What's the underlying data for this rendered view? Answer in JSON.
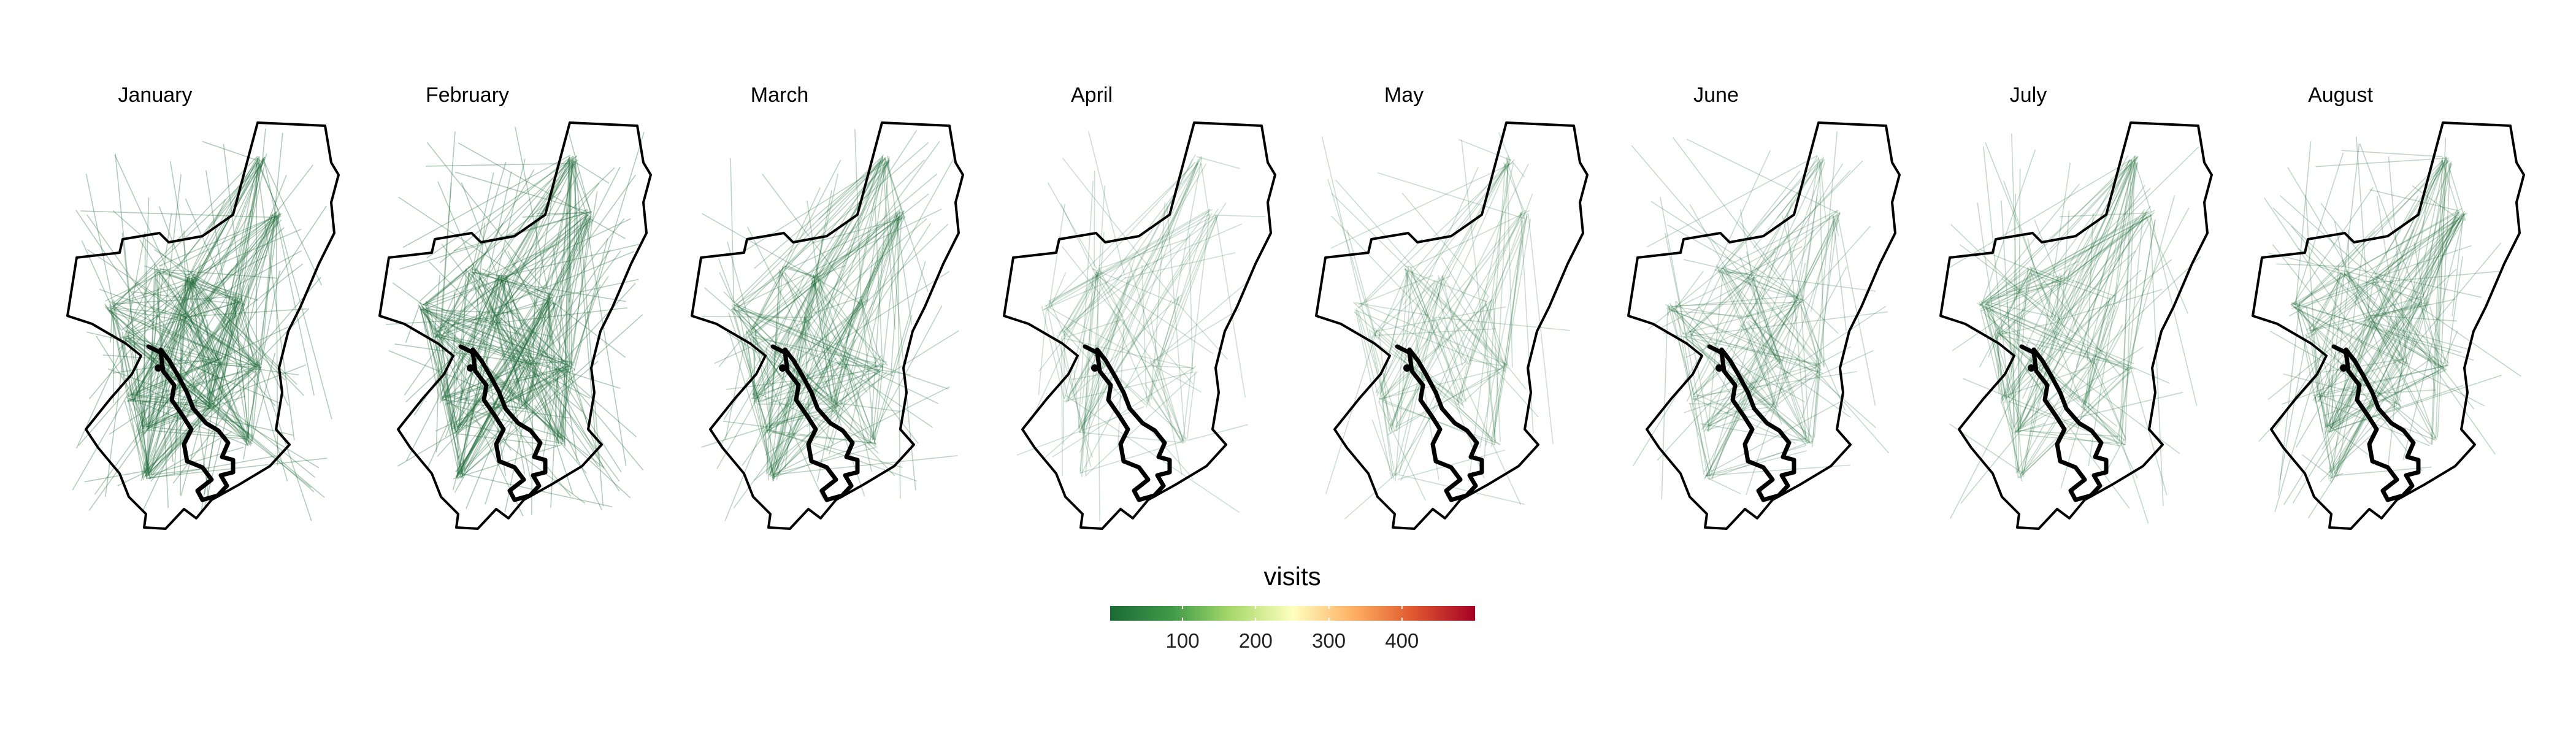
{
  "figure": {
    "panels": [
      {
        "month": "January",
        "density": 1.0
      },
      {
        "month": "February",
        "density": 1.0
      },
      {
        "month": "March",
        "density": 0.7
      },
      {
        "month": "April",
        "density": 0.25
      },
      {
        "month": "May",
        "density": 0.3
      },
      {
        "month": "June",
        "density": 0.45
      },
      {
        "month": "July",
        "density": 0.5
      },
      {
        "month": "August",
        "density": 0.6
      }
    ],
    "legend": {
      "title": "visits",
      "ticks": [
        {
          "value": 100,
          "label": "100"
        },
        {
          "value": 200,
          "label": "200"
        },
        {
          "value": 300,
          "label": "300"
        },
        {
          "value": 400,
          "label": "400"
        }
      ],
      "range": [
        1,
        500
      ],
      "colors": [
        "#1a6b34",
        "#3f9b48",
        "#a6d96a",
        "#ffffbf",
        "#fdae61",
        "#e0582f",
        "#a50026"
      ]
    },
    "colors": {
      "line": "#1f6b3a",
      "outline": "#000000",
      "river": "#000000"
    }
  }
}
